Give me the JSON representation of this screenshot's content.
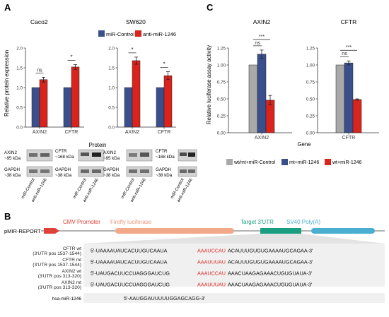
{
  "colors": {
    "control": "#3a4f8c",
    "anti": "#d9231d",
    "gray": "#a9a9a9",
    "target": "#1a9e80",
    "sv40": "#4aaed0",
    "cmv": "#e0403a",
    "firefly": "#f2a98a"
  },
  "panelA": {
    "letter": "A",
    "legend": [
      "miR-Control",
      "anti-miR-1246"
    ],
    "ylabel": "Relative protein expression",
    "xlabel": "Protein",
    "charts": [
      {
        "title": "Caco2",
        "chart_data": {
          "type": "bar",
          "categories": [
            "AXIN2",
            "CFTR"
          ],
          "series": [
            {
              "name": "miR-Control",
              "values": [
                1.0,
                1.0
              ],
              "errors": [
                0,
                0
              ]
            },
            {
              "name": "anti-miR-1246",
              "values": [
                1.2,
                1.52
              ],
              "errors": [
                0.06,
                0.06
              ]
            }
          ],
          "ylim": [
            0,
            2.0
          ],
          "yticks": [
            "0.0",
            "0.5",
            "1.0",
            "1.5",
            "2.0"
          ],
          "significance": [
            "ns",
            "*"
          ]
        }
      },
      {
        "title": "SW620",
        "chart_data": {
          "type": "bar",
          "categories": [
            "AXIN2",
            "CFTR"
          ],
          "series": [
            {
              "name": "miR-Control",
              "values": [
                1.0,
                1.0
              ],
              "errors": [
                0,
                0
              ]
            },
            {
              "name": "anti-miR-1246",
              "values": [
                1.68,
                1.3
              ],
              "errors": [
                0.09,
                0.1
              ]
            }
          ],
          "ylim": [
            0,
            2.0
          ],
          "yticks": [
            "0.0",
            "0.5",
            "1.0",
            "1.5",
            "2.0"
          ],
          "significance": [
            "*",
            "*"
          ]
        }
      }
    ],
    "blots": {
      "axin2": [
        "AXIN2",
        "~95 kDa"
      ],
      "cftr": [
        "CFTR",
        "~168 kDa"
      ],
      "gapdh": [
        "GAPDH",
        "~38 kDa"
      ],
      "lanes": [
        "miR-Control",
        "anti-miR-1246"
      ]
    }
  },
  "panelC": {
    "letter": "C",
    "ylabel": "Relative luciferase assay activity",
    "xlabel": "Gene",
    "legend": [
      "wt/mt+miR-Control",
      "mt+miR-1246",
      "wt+miR-1246"
    ],
    "charts": [
      {
        "title": "AXIN2",
        "chart_data": {
          "type": "bar",
          "categories": [
            "AXIN2"
          ],
          "series": [
            {
              "name": "wt/mt+miR-Control",
              "values": [
                1.0
              ],
              "errors": [
                0
              ]
            },
            {
              "name": "mt+miR-1246",
              "values": [
                1.16
              ],
              "errors": [
                0.06
              ]
            },
            {
              "name": "wt+miR-1246",
              "values": [
                0.48
              ],
              "errors": [
                0.07
              ]
            }
          ],
          "ylim": [
            0,
            1.25
          ],
          "yticks": [
            "0.00",
            "0.25",
            "0.50",
            "0.75",
            "1.00",
            "1.25"
          ],
          "significance": [
            "ns",
            "***"
          ]
        }
      },
      {
        "title": "CFTR",
        "chart_data": {
          "type": "bar",
          "categories": [
            "CFTR"
          ],
          "series": [
            {
              "name": "wt/mt+miR-Control",
              "values": [
                1.0
              ],
              "errors": [
                0
              ]
            },
            {
              "name": "mt+miR-1246",
              "values": [
                1.03
              ],
              "errors": [
                0.03
              ]
            },
            {
              "name": "wt+miR-1246",
              "values": [
                0.49
              ],
              "errors": [
                0.01
              ]
            }
          ],
          "ylim": [
            0,
            1.25
          ],
          "yticks": [
            "0.00",
            "0.25",
            "0.50",
            "0.75",
            "1.00",
            "1.25"
          ],
          "significance": [
            "ns",
            "***"
          ]
        }
      }
    ]
  },
  "panelB": {
    "letter": "B",
    "construct": "pMIR-REPORT",
    "cmv": "CMV Promoter",
    "firefly": "Firefly luciferase",
    "target": "Target 3'UTR",
    "sv40": "SV40 Poly(A)",
    "rows": [
      {
        "label1": "CFTR wt",
        "label2": "(3'UTR pos 1537-1544)",
        "left": "5'-UAAAAUAUCACUUGUCAAUA",
        "site": "AAAUCCAU",
        "right": "ACAUUUGUGUGAAAAUGCAGAA-3'"
      },
      {
        "label1": "CFTR mt",
        "label2": "(3'UTR pos 1537-1544)",
        "left": "5'-UAAAAUAUCACUUGUCAAUA",
        "site": "AAAUUUAU",
        "right": "ACAUUUGUGUGAAAAUGCAGAA-3'"
      },
      {
        "label1": "AXIN2 wt",
        "label2": "(3'UTR pos 313-320)",
        "left": "5'-UAUGACUUCCUAGGGAUCUG",
        "site": "AAAUCCAU",
        "right": "AAACUAAGAGAAACUGUGUAUA-3'"
      },
      {
        "label1": "AXIN2 mt",
        "label2": "(3'UTR pos 313-320)",
        "left": "5'-UAUGACUUCCUAGGGAUCUG",
        "site": "AAAUUUAU",
        "right": "AAACUAAGAGAAACUGUGUAUA-3'"
      }
    ],
    "mirna_label": "hsa-miR-1246",
    "mirna_seq": "5'-AAUGGAUUUUUGGAGCAGG-3'"
  }
}
